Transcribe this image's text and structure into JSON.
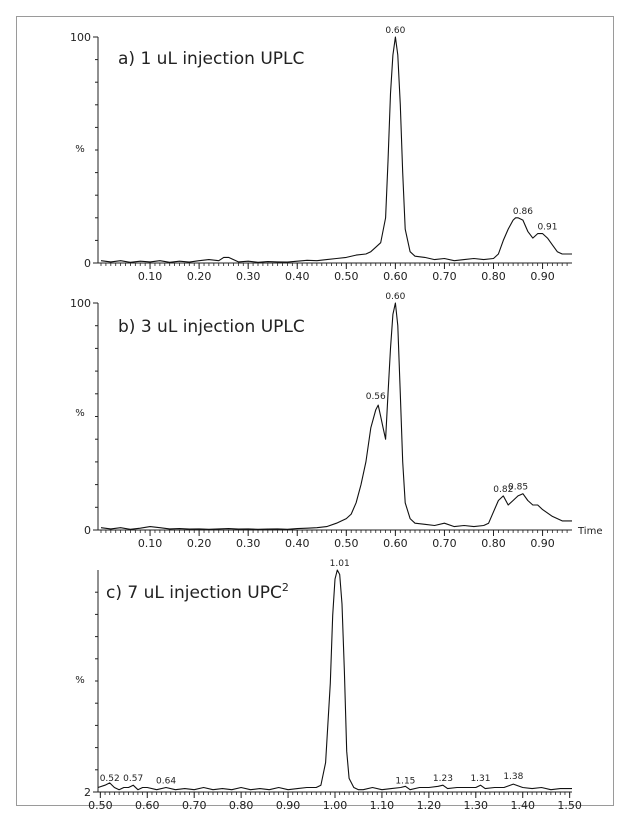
{
  "chart_data": [
    {
      "type": "line",
      "title": "a) 1 uL injection UPLC",
      "ylabel": "%",
      "xlabel": "",
      "xlim": [
        0.0,
        0.96
      ],
      "ylim": [
        0,
        100
      ],
      "yticks": [
        "0",
        "100"
      ],
      "xticks": [
        0.1,
        0.2,
        0.3,
        0.4,
        0.5,
        0.6,
        0.7,
        0.8,
        0.9
      ],
      "xtick_labels": [
        "0.10",
        "0.20",
        "0.30",
        "0.40",
        "0.50",
        "0.60",
        "0.70",
        "0.80",
        "0.90"
      ],
      "peak_labels": [
        {
          "text": "0.60",
          "x": 0.6,
          "y": 100
        },
        {
          "text": "0.86",
          "x": 0.86,
          "y": 20
        },
        {
          "text": "0.91",
          "x": 0.91,
          "y": 13
        }
      ],
      "series": [
        {
          "x": [
            0.0,
            0.02,
            0.04,
            0.06,
            0.08,
            0.1,
            0.12,
            0.14,
            0.16,
            0.18,
            0.2,
            0.22,
            0.24,
            0.25,
            0.26,
            0.27,
            0.28,
            0.3,
            0.32,
            0.34,
            0.36,
            0.38,
            0.4,
            0.42,
            0.44,
            0.46,
            0.48,
            0.5,
            0.52,
            0.54,
            0.55,
            0.56,
            0.57,
            0.58,
            0.585,
            0.59,
            0.595,
            0.6,
            0.605,
            0.61,
            0.615,
            0.62,
            0.63,
            0.64,
            0.66,
            0.68,
            0.7,
            0.72,
            0.74,
            0.76,
            0.78,
            0.8,
            0.81,
            0.82,
            0.83,
            0.84,
            0.845,
            0.85,
            0.86,
            0.87,
            0.88,
            0.89,
            0.9,
            0.91,
            0.92,
            0.93,
            0.94,
            0.95,
            0.96
          ],
          "y": [
            1,
            0.5,
            1,
            0.3,
            0.8,
            0.5,
            1,
            0.3,
            0.8,
            0.4,
            1,
            1.5,
            1,
            2.5,
            2.5,
            1.5,
            0.5,
            0.8,
            0.3,
            0.6,
            0.5,
            0.4,
            0.8,
            1.2,
            1,
            1.5,
            2,
            2.5,
            3.5,
            4,
            5,
            7,
            9,
            20,
            45,
            75,
            92,
            100,
            92,
            70,
            40,
            15,
            5,
            3,
            2.5,
            1.5,
            2,
            1,
            1.5,
            2,
            1.5,
            2,
            4,
            10,
            15,
            19,
            20,
            20,
            19,
            14,
            11,
            13,
            13,
            11,
            8,
            5,
            4,
            4,
            4
          ]
        }
      ]
    },
    {
      "type": "line",
      "title": "b) 3 uL injection UPLC",
      "ylabel": "%",
      "xlabel": "Time",
      "xlim": [
        0.0,
        0.96
      ],
      "ylim": [
        0,
        100
      ],
      "yticks": [
        "0",
        "100"
      ],
      "xticks": [
        0.1,
        0.2,
        0.3,
        0.4,
        0.5,
        0.6,
        0.7,
        0.8,
        0.9
      ],
      "xtick_labels": [
        "0.10",
        "0.20",
        "0.30",
        "0.40",
        "0.50",
        "0.60",
        "0.70",
        "0.80",
        "0.90"
      ],
      "peak_labels": [
        {
          "text": "0.56",
          "x": 0.56,
          "y": 56
        },
        {
          "text": "0.60",
          "x": 0.6,
          "y": 100
        },
        {
          "text": "0.82",
          "x": 0.82,
          "y": 15
        },
        {
          "text": "0.85",
          "x": 0.85,
          "y": 16
        }
      ],
      "series": [
        {
          "x": [
            0.0,
            0.02,
            0.04,
            0.06,
            0.08,
            0.1,
            0.12,
            0.14,
            0.16,
            0.18,
            0.2,
            0.22,
            0.24,
            0.26,
            0.28,
            0.3,
            0.32,
            0.34,
            0.36,
            0.38,
            0.4,
            0.42,
            0.44,
            0.46,
            0.48,
            0.5,
            0.51,
            0.52,
            0.53,
            0.54,
            0.55,
            0.56,
            0.565,
            0.57,
            0.575,
            0.58,
            0.585,
            0.59,
            0.595,
            0.6,
            0.605,
            0.61,
            0.615,
            0.62,
            0.63,
            0.64,
            0.66,
            0.68,
            0.7,
            0.72,
            0.74,
            0.76,
            0.78,
            0.79,
            0.8,
            0.81,
            0.82,
            0.83,
            0.84,
            0.85,
            0.86,
            0.87,
            0.88,
            0.89,
            0.9,
            0.92,
            0.94,
            0.96
          ],
          "y": [
            1,
            0.5,
            1,
            0.3,
            0.8,
            1.5,
            1,
            0.5,
            0.6,
            0.4,
            0.5,
            0.3,
            0.5,
            0.6,
            0.4,
            0.5,
            0.3,
            0.4,
            0.5,
            0.3,
            0.6,
            0.8,
            1,
            1.5,
            3,
            5,
            7,
            12,
            20,
            30,
            45,
            53,
            55,
            50,
            45,
            40,
            60,
            80,
            95,
            100,
            90,
            60,
            30,
            12,
            5,
            3,
            2.5,
            2,
            3,
            1.5,
            2,
            1.5,
            2,
            3,
            8,
            13,
            15,
            11,
            13,
            15,
            16,
            13,
            11,
            11,
            9,
            6,
            4,
            4
          ]
        }
      ]
    },
    {
      "type": "line",
      "title": "c) 7 uL injection UPC",
      "title_sup": "2",
      "ylabel": "%",
      "xlabel": "",
      "xlim": [
        0.495,
        1.505
      ],
      "ylim": [
        2,
        100
      ],
      "yticks": [
        "2"
      ],
      "xticks": [
        0.5,
        0.6,
        0.7,
        0.8,
        0.9,
        1.0,
        1.1,
        1.2,
        1.3,
        1.4,
        1.5
      ],
      "xtick_labels": [
        "0.50",
        "0.60",
        "0.70",
        "0.80",
        "0.90",
        "1.00",
        "1.10",
        "1.20",
        "1.30",
        "1.40",
        "1.50"
      ],
      "peak_labels": [
        {
          "text": "0.52",
          "x": 0.52,
          "y": 5
        },
        {
          "text": "0.57",
          "x": 0.57,
          "y": 5
        },
        {
          "text": "0.64",
          "x": 0.64,
          "y": 4
        },
        {
          "text": "1.01",
          "x": 1.01,
          "y": 100
        },
        {
          "text": "1.15",
          "x": 1.15,
          "y": 4
        },
        {
          "text": "1.23",
          "x": 1.23,
          "y": 5
        },
        {
          "text": "1.31",
          "x": 1.31,
          "y": 5
        },
        {
          "text": "1.38",
          "x": 1.38,
          "y": 6
        }
      ],
      "series": [
        {
          "x": [
            0.495,
            0.51,
            0.52,
            0.53,
            0.54,
            0.55,
            0.56,
            0.57,
            0.58,
            0.59,
            0.6,
            0.62,
            0.64,
            0.66,
            0.68,
            0.7,
            0.72,
            0.74,
            0.76,
            0.78,
            0.8,
            0.82,
            0.84,
            0.86,
            0.88,
            0.9,
            0.92,
            0.94,
            0.96,
            0.97,
            0.98,
            0.99,
            0.995,
            1.0,
            1.005,
            1.01,
            1.015,
            1.02,
            1.025,
            1.03,
            1.04,
            1.05,
            1.06,
            1.08,
            1.1,
            1.12,
            1.14,
            1.15,
            1.16,
            1.18,
            1.2,
            1.22,
            1.23,
            1.24,
            1.26,
            1.28,
            1.3,
            1.31,
            1.32,
            1.34,
            1.36,
            1.38,
            1.4,
            1.42,
            1.44,
            1.46,
            1.48,
            1.505
          ],
          "y": [
            4,
            5,
            6,
            4,
            3,
            4,
            4,
            5,
            3,
            4,
            4,
            3,
            4,
            3,
            3.5,
            3,
            4,
            3,
            3.5,
            3,
            4,
            3,
            3.5,
            3,
            4,
            3,
            3.5,
            4,
            4,
            5,
            15,
            50,
            80,
            96,
            100,
            98,
            85,
            55,
            20,
            8,
            4,
            3,
            3,
            4,
            3,
            3.5,
            4,
            4.5,
            3,
            4,
            4,
            4.5,
            5,
            3.5,
            4,
            4,
            4,
            5,
            3.5,
            4,
            4,
            5.5,
            4,
            3.5,
            4,
            3,
            3.5,
            3.5
          ]
        }
      ]
    }
  ]
}
